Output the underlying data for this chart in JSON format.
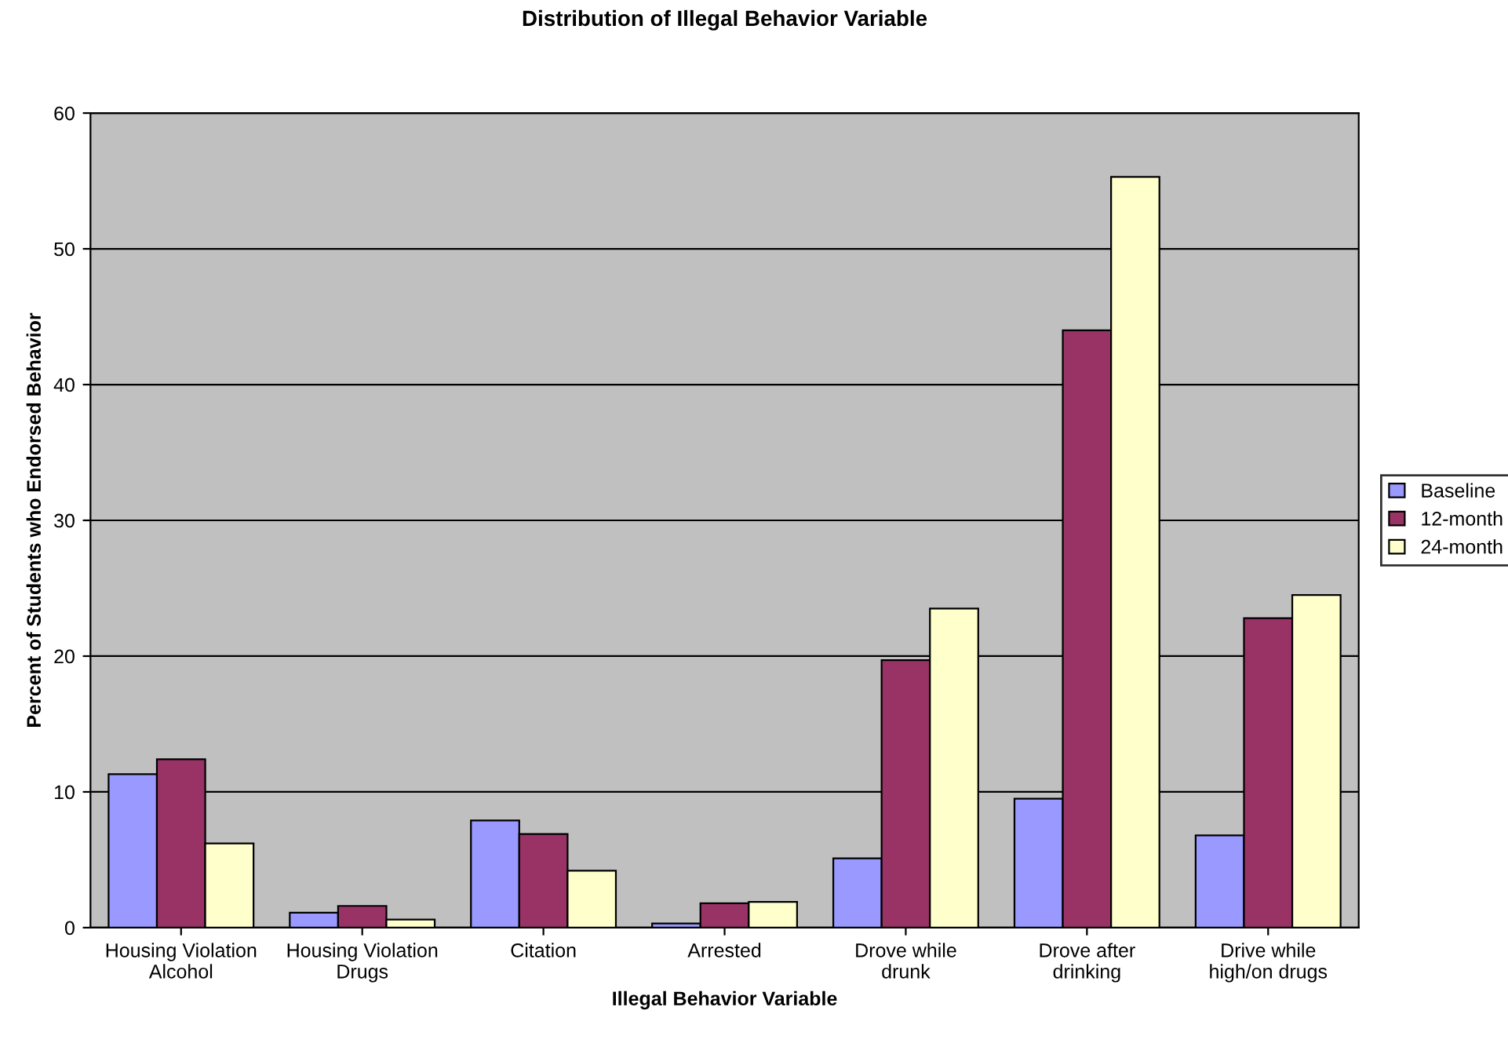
{
  "chart_data": {
    "type": "bar",
    "title": "Distribution of Illegal Behavior Variable",
    "xlabel": "Illegal Behavior Variable",
    "ylabel": "Percent of Students who Endorsed Behavior",
    "categories": [
      "Housing Violation\nAlcohol",
      "Housing Violation\nDrugs",
      "Citation",
      "Arrested",
      "Drove while\ndrunk",
      "Drove after\ndrinking",
      "Drive while\nhigh/on drugs"
    ],
    "series": [
      {
        "name": "Baseline",
        "color": "#9999ff",
        "values": [
          11.3,
          1.1,
          7.9,
          0.3,
          5.1,
          9.5,
          6.8
        ]
      },
      {
        "name": "12-month",
        "color": "#993366",
        "values": [
          12.4,
          1.6,
          6.9,
          1.8,
          19.7,
          44.0,
          22.8
        ]
      },
      {
        "name": "24-month",
        "color": "#ffffcc",
        "values": [
          6.2,
          0.6,
          4.2,
          1.9,
          23.5,
          55.3,
          24.5
        ]
      }
    ],
    "ylim": [
      0,
      60
    ],
    "yticks": [
      0,
      10,
      20,
      30,
      40,
      50,
      60
    ],
    "grid": "y",
    "legend": "right"
  }
}
